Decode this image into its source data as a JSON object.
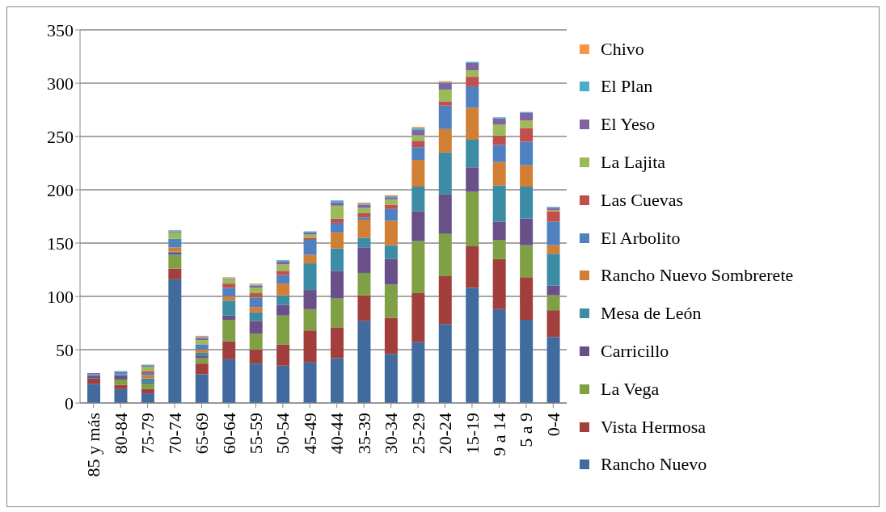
{
  "chart_data": {
    "type": "bar",
    "stacked": true,
    "categories": [
      "85 y más",
      "80-84",
      "75-79",
      "70-74",
      "65-69",
      "60-64",
      "55-59",
      "50-54",
      "45-49",
      "40-44",
      "35-39",
      "30-34",
      "25-29",
      "20-24",
      "15-19",
      "9 a 14",
      "5 a 9",
      "0-4"
    ],
    "series": [
      {
        "name": "Rancho Nuevo",
        "color": "#416b9e",
        "values": [
          18,
          13,
          9,
          116,
          27,
          41,
          37,
          35,
          38,
          42,
          77,
          46,
          57,
          74,
          108,
          88,
          78,
          62
        ]
      },
      {
        "name": "Vista Hermosa",
        "color": "#a23f3d",
        "values": [
          5,
          4,
          4,
          10,
          10,
          17,
          13,
          20,
          30,
          29,
          24,
          34,
          46,
          45,
          39,
          47,
          40,
          25
        ]
      },
      {
        "name": "La Vega",
        "color": "#80a046",
        "values": [
          0,
          5,
          5,
          13,
          5,
          20,
          15,
          27,
          20,
          27,
          21,
          31,
          49,
          40,
          51,
          18,
          30,
          14
        ]
      },
      {
        "name": "Carricillo",
        "color": "#6a5089",
        "values": [
          2,
          4,
          1,
          2,
          2,
          4,
          12,
          10,
          18,
          26,
          24,
          24,
          28,
          37,
          23,
          17,
          25,
          9
        ]
      },
      {
        "name": "Mesa de León",
        "color": "#3b8ca4",
        "values": [
          1,
          1,
          4,
          1,
          3,
          14,
          8,
          9,
          25,
          21,
          9,
          13,
          23,
          39,
          26,
          34,
          30,
          30
        ]
      },
      {
        "name": "Rancho Nuevo Sombrerete",
        "color": "#d27f36",
        "values": [
          0,
          0,
          3,
          4,
          3,
          4,
          5,
          11,
          8,
          15,
          17,
          23,
          25,
          22,
          30,
          22,
          20,
          8
        ]
      },
      {
        "name": "El Arbolito",
        "color": "#4f81c1",
        "values": [
          1,
          1,
          2,
          8,
          5,
          8,
          9,
          8,
          14,
          9,
          2,
          11,
          12,
          22,
          20,
          16,
          22,
          22
        ]
      },
      {
        "name": "Las Cuevas",
        "color": "#c0504d",
        "values": [
          0,
          0,
          2,
          0,
          0,
          4,
          4,
          4,
          2,
          4,
          4,
          4,
          6,
          4,
          9,
          9,
          13,
          10
        ]
      },
      {
        "name": "La Lajita",
        "color": "#9bbb59",
        "values": [
          0,
          0,
          4,
          6,
          4,
          4,
          5,
          6,
          3,
          12,
          5,
          5,
          5,
          11,
          6,
          10,
          7,
          1
        ]
      },
      {
        "name": "El Yeso",
        "color": "#8064a2",
        "values": [
          1,
          1,
          1,
          1,
          2,
          0,
          2,
          3,
          2,
          3,
          3,
          2,
          5,
          6,
          7,
          6,
          7,
          2
        ]
      },
      {
        "name": "El Plan",
        "color": "#4bacc6",
        "values": [
          0,
          1,
          1,
          1,
          1,
          1,
          1,
          1,
          1,
          2,
          1,
          1,
          2,
          1,
          1,
          1,
          1,
          1
        ]
      },
      {
        "name": "Chivo",
        "color": "#f79646",
        "values": [
          0,
          0,
          0,
          0,
          1,
          1,
          1,
          0,
          0,
          0,
          1,
          1,
          1,
          1,
          0,
          0,
          0,
          0
        ]
      }
    ],
    "ylim": [
      0,
      350
    ],
    "yticks": [
      0,
      50,
      100,
      150,
      200,
      250,
      300,
      350
    ],
    "grid": "y",
    "legend": "right"
  }
}
